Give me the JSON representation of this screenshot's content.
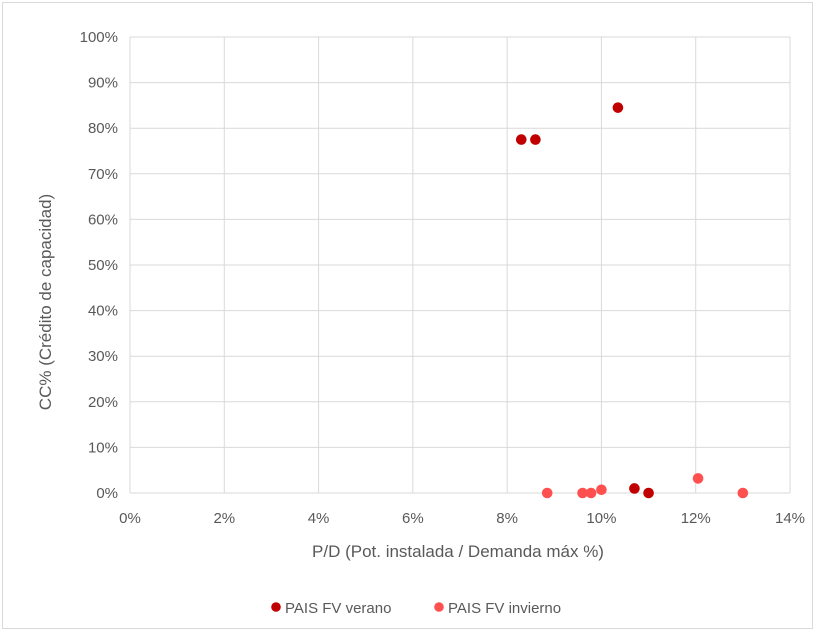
{
  "chart_data": {
    "type": "scatter",
    "title": "",
    "xlabel": "P/D (Pot. instalada / Demanda máx %)",
    "ylabel": "CC% (Crédito de capacidad)",
    "xlim": [
      0,
      14
    ],
    "ylim": [
      0,
      100
    ],
    "x_ticks": [
      0,
      2,
      4,
      6,
      8,
      10,
      12,
      14
    ],
    "y_ticks": [
      0,
      10,
      20,
      30,
      40,
      50,
      60,
      70,
      80,
      90,
      100
    ],
    "x_tick_labels": [
      "0%",
      "2%",
      "4%",
      "6%",
      "8%",
      "10%",
      "12%",
      "14%"
    ],
    "y_tick_labels": [
      "0%",
      "10%",
      "20%",
      "30%",
      "40%",
      "50%",
      "60%",
      "70%",
      "80%",
      "90%",
      "100%"
    ],
    "grid": true,
    "legend_position": "bottom",
    "series": [
      {
        "name": "PAIS FV verano",
        "color": "#c00000",
        "points": [
          {
            "x": 8.3,
            "y": 77.5
          },
          {
            "x": 8.6,
            "y": 77.5
          },
          {
            "x": 10.35,
            "y": 84.5
          },
          {
            "x": 10.7,
            "y": 1.0
          },
          {
            "x": 11.0,
            "y": 0.0
          }
        ]
      },
      {
        "name": "PAIS FV invierno",
        "color": "#ff5050",
        "points": [
          {
            "x": 8.85,
            "y": 0.0
          },
          {
            "x": 9.6,
            "y": 0.0
          },
          {
            "x": 9.78,
            "y": 0.0
          },
          {
            "x": 10.0,
            "y": 0.7
          },
          {
            "x": 12.05,
            "y": 3.2
          },
          {
            "x": 13.0,
            "y": 0.0
          }
        ]
      }
    ]
  }
}
